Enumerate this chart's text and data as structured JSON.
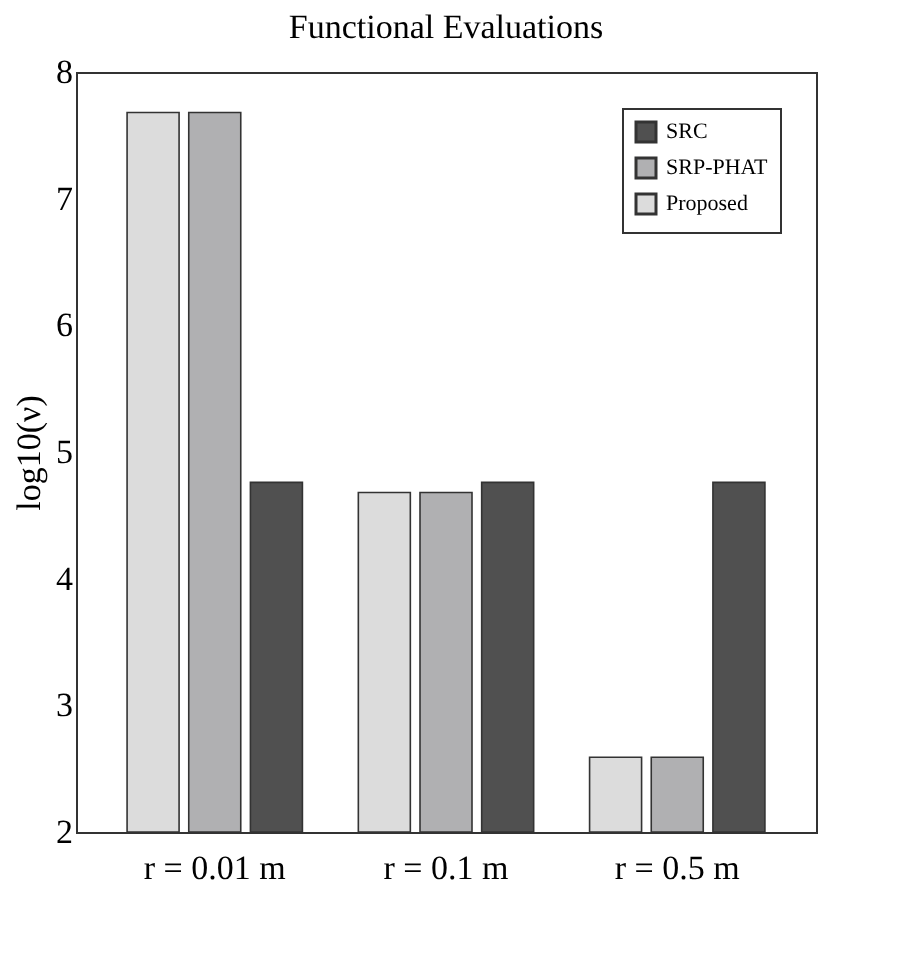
{
  "chart_data": {
    "type": "bar",
    "title": "Functional Evaluations",
    "ylabel": "log10(ν)",
    "categories": [
      "r = 0.01 m",
      "r = 0.1 m",
      "r = 0.5 m"
    ],
    "series": [
      {
        "name": "Proposed",
        "color": "#dcdcdc",
        "values": [
          7.68,
          4.68,
          2.59
        ]
      },
      {
        "name": "SRP-PHAT",
        "color": "#b0b0b2",
        "values": [
          7.68,
          4.68,
          2.59
        ]
      },
      {
        "name": "SRC",
        "color": "#505050",
        "values": [
          4.76,
          4.76,
          4.76
        ]
      }
    ],
    "ylim": [
      2,
      8
    ],
    "yticks": [
      2,
      3,
      4,
      5,
      6,
      7,
      8
    ],
    "grid": false,
    "legend": "top right"
  }
}
